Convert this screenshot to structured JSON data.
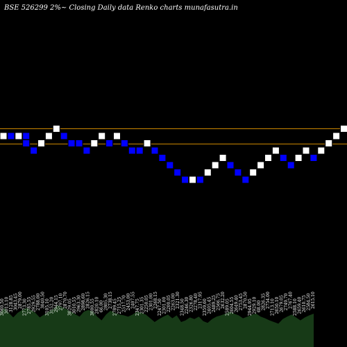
{
  "chart_data": {
    "type": "renko",
    "title": "BSE 526299 2%~ Closing Daily data Renko charts munafasutra.in",
    "colors": {
      "background": "#000000",
      "up_brick": "#ffffff",
      "down_brick": "#0000ff",
      "brick_outline": "#000000",
      "reference_line": "#cc8800",
      "volume_fill": "#173a17",
      "label_text": "#ffffff"
    },
    "reference_lines": [
      "upper",
      "lower"
    ],
    "bricks": [
      {
        "col": 0,
        "level": 0,
        "dir": "up"
      },
      {
        "col": 1,
        "level": 0,
        "dir": "down"
      },
      {
        "col": 2,
        "level": 0,
        "dir": "up"
      },
      {
        "col": 3,
        "level": 0,
        "dir": "down"
      },
      {
        "col": 3,
        "level": -1,
        "dir": "down"
      },
      {
        "col": 4,
        "level": -2,
        "dir": "down"
      },
      {
        "col": 5,
        "level": -1,
        "dir": "up"
      },
      {
        "col": 6,
        "level": 0,
        "dir": "up"
      },
      {
        "col": 7,
        "level": 1,
        "dir": "up"
      },
      {
        "col": 8,
        "level": 0,
        "dir": "down"
      },
      {
        "col": 9,
        "level": -1,
        "dir": "down"
      },
      {
        "col": 10,
        "level": -1,
        "dir": "down"
      },
      {
        "col": 11,
        "level": -2,
        "dir": "down"
      },
      {
        "col": 12,
        "level": -1,
        "dir": "up"
      },
      {
        "col": 13,
        "level": 0,
        "dir": "up"
      },
      {
        "col": 14,
        "level": -1,
        "dir": "down"
      },
      {
        "col": 15,
        "level": 0,
        "dir": "up"
      },
      {
        "col": 16,
        "level": -1,
        "dir": "down"
      },
      {
        "col": 17,
        "level": -2,
        "dir": "down"
      },
      {
        "col": 18,
        "level": -2,
        "dir": "down"
      },
      {
        "col": 19,
        "level": -1,
        "dir": "up"
      },
      {
        "col": 20,
        "level": -2,
        "dir": "down"
      },
      {
        "col": 21,
        "level": -3,
        "dir": "down"
      },
      {
        "col": 22,
        "level": -4,
        "dir": "down"
      },
      {
        "col": 23,
        "level": -5,
        "dir": "down"
      },
      {
        "col": 24,
        "level": -6,
        "dir": "down"
      },
      {
        "col": 25,
        "level": -6,
        "dir": "up"
      },
      {
        "col": 26,
        "level": -6,
        "dir": "down"
      },
      {
        "col": 27,
        "level": -5,
        "dir": "up"
      },
      {
        "col": 28,
        "level": -4,
        "dir": "up"
      },
      {
        "col": 29,
        "level": -3,
        "dir": "up"
      },
      {
        "col": 30,
        "level": -4,
        "dir": "down"
      },
      {
        "col": 31,
        "level": -5,
        "dir": "down"
      },
      {
        "col": 32,
        "level": -6,
        "dir": "down"
      },
      {
        "col": 33,
        "level": -5,
        "dir": "up"
      },
      {
        "col": 34,
        "level": -4,
        "dir": "up"
      },
      {
        "col": 35,
        "level": -3,
        "dir": "up"
      },
      {
        "col": 36,
        "level": -2,
        "dir": "up"
      },
      {
        "col": 37,
        "level": -3,
        "dir": "down"
      },
      {
        "col": 38,
        "level": -4,
        "dir": "down"
      },
      {
        "col": 39,
        "level": -3,
        "dir": "up"
      },
      {
        "col": 40,
        "level": -2,
        "dir": "up"
      },
      {
        "col": 41,
        "level": -3,
        "dir": "down"
      },
      {
        "col": 42,
        "level": -2,
        "dir": "up"
      },
      {
        "col": 43,
        "level": -1,
        "dir": "up"
      },
      {
        "col": 44,
        "level": 0,
        "dir": "up"
      },
      {
        "col": 45,
        "level": 1,
        "dir": "up"
      },
      {
        "col": 46,
        "level": 2,
        "dir": "up"
      },
      {
        "col": 47,
        "level": 1,
        "dir": "down"
      },
      {
        "col": 48,
        "level": 0,
        "dir": "down"
      },
      {
        "col": 49,
        "level": -1,
        "dir": "down"
      },
      {
        "col": 50,
        "level": -1,
        "dir": "up"
      },
      {
        "col": 51,
        "level": -1,
        "dir": "down"
      },
      {
        "col": 52,
        "level": 0,
        "dir": "up"
      },
      {
        "col": 53,
        "level": -1,
        "dir": "down"
      },
      {
        "col": 54,
        "level": 0,
        "dir": "up"
      },
      {
        "col": 55,
        "level": -1,
        "dir": "down"
      }
    ],
    "price_labels": [
      "3060.50",
      "3013.10",
      "3128.85",
      "3043.45",
      "2879.00",
      "2773.30",
      "2785.55",
      "2929.55",
      "2788.00",
      "3040.50",
      "3105.10",
      "3152.20",
      "2944.15",
      "2797.10",
      "2870.70",
      "3029.05",
      "3010.55",
      "2963.30",
      "2898.60",
      "2826.15",
      "3000.55",
      "2820.10",
      "66.00",
      "2805.30",
      "2738.15",
      "2789.45",
      "2715.25",
      "2517.70",
      "2453.00",
      "2407.55",
      "2347.75",
      "2301.35",
      "2250.05",
      "2301.00",
      "2268.15",
      "2247.50",
      "2301.00",
      "2200.05",
      "2263.00",
      "2321.30",
      "2348.50",
      "2246.30",
      "2326.80",
      "2278.40",
      "2317.95",
      "2359.60",
      "2405.45",
      "2489.25",
      "2566.75",
      "2632.20",
      "2589.05",
      "2604.55",
      "2649.40",
      "2753.45",
      "2870.50",
      "2944.95",
      "2929.10",
      "68.00",
      "2826.35",
      "2754.00",
      "2713.10",
      "2650.10",
      "2679.05",
      "2749.70",
      "2767.40",
      "2588.10",
      "2659.40",
      "2610.75",
      "2584.50",
      "2615.10"
    ],
    "volume_levels": [
      0.82,
      0.94,
      0.82,
      0.71,
      0.82,
      0.89,
      0.94,
      0.89,
      0.82,
      0.71,
      0.78,
      0.85,
      0.91,
      1.0,
      0.96,
      0.91,
      0.85,
      0.79,
      0.73,
      0.85,
      0.89,
      0.85,
      0.73,
      0.64,
      0.78,
      0.87,
      0.82,
      0.78,
      0.76,
      0.73,
      0.78,
      0.85,
      0.82,
      0.78,
      0.69,
      0.6,
      0.67,
      0.73,
      0.78,
      0.69,
      0.76,
      0.6,
      0.64,
      0.71,
      0.67,
      0.73,
      0.62,
      0.58,
      0.67,
      0.73,
      0.76,
      0.8,
      0.85,
      0.8,
      0.76,
      0.69,
      0.73,
      0.78,
      0.8,
      0.73,
      0.69,
      0.64,
      0.6,
      0.56,
      0.67,
      0.73,
      0.78,
      0.71,
      0.64,
      0.71,
      0.76,
      0.8
    ]
  }
}
